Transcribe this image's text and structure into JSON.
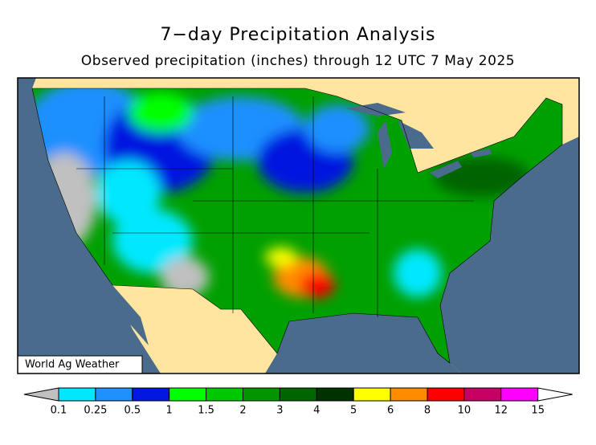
{
  "header": {
    "title": "7−day Precipitation Analysis",
    "subtitle": "Observed precipitation (inches) through 12 UTC 7 May 2025"
  },
  "map": {
    "credit": "World Ag Weather"
  },
  "legend": {
    "labels": [
      0.1,
      0.25,
      0.5,
      1,
      1.5,
      2,
      3,
      4,
      5,
      6,
      8,
      10,
      12,
      15
    ],
    "colors": [
      "#c0c0c0",
      "#00e8ff",
      "#1e90ff",
      "#0018e0",
      "#00ff00",
      "#00c800",
      "#009600",
      "#006400",
      "#003200",
      "#ffff00",
      "#ff8c00",
      "#ff0000",
      "#c80064",
      "#ff00ff",
      "#a050d0",
      "#ffffff"
    ]
  }
}
